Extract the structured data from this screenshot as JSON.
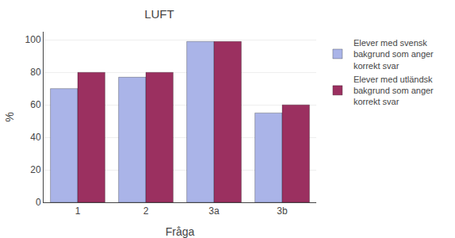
{
  "chart_data": {
    "type": "bar",
    "title": "LUFT",
    "categories": [
      "1",
      "2",
      "3a",
      "3b"
    ],
    "series": [
      {
        "name": "Elever med svensk\nbakgrund som anger\nkorrekt svar",
        "color": "#aab4e8",
        "values": [
          70,
          77,
          99,
          55
        ]
      },
      {
        "name": "Elever med utländsk\nbakgrund som anger\nkorrekt svar",
        "color": "#9b3060",
        "values": [
          80,
          80,
          99,
          60
        ]
      }
    ],
    "xlabel": "Fra̐ga",
    "ylabel": "%",
    "ylim": [
      0,
      105
    ],
    "yticks": [
      0,
      20,
      40,
      60,
      80,
      100
    ],
    "grid": true,
    "legend": "right"
  }
}
